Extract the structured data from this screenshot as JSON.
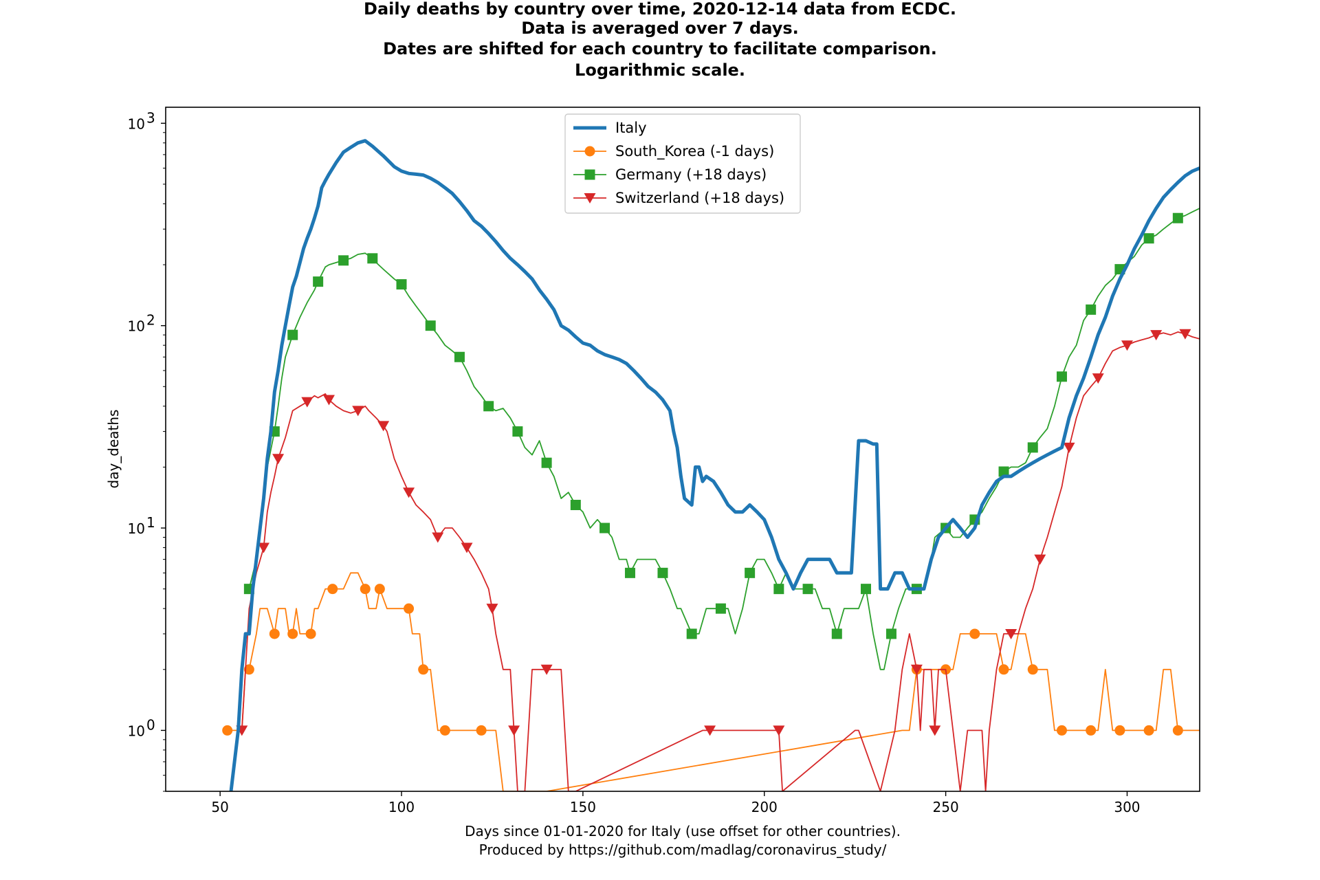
{
  "chart_data": {
    "type": "line",
    "title_lines": [
      "Daily deaths by country over time, 2020-12-14 data from ECDC.",
      "Data is averaged over 7 days.",
      "Dates are shifted for each country to facilitate comparison.",
      "Logarithmic scale."
    ],
    "xlabel_lines": [
      "Days since 01-01-2020 for Italy (use offset for other countries).",
      "Produced by https://github.com/madlag/coronavirus_study/"
    ],
    "ylabel": "day_deaths",
    "xlim": [
      35,
      320
    ],
    "ylim": [
      0.5,
      1200
    ],
    "yscale": "log",
    "x_ticks": [
      50,
      100,
      150,
      200,
      250,
      300
    ],
    "y_ticks": [
      {
        "value": 1,
        "base": "10",
        "exp": "0"
      },
      {
        "value": 10,
        "base": "10",
        "exp": "1"
      },
      {
        "value": 100,
        "base": "10",
        "exp": "2"
      },
      {
        "value": 1000,
        "base": "10",
        "exp": "3"
      }
    ],
    "legend_position": "top-center",
    "series": [
      {
        "name": "Italy",
        "color": "#1f77b4",
        "marker": "none",
        "x": [
          53,
          55,
          56,
          57,
          58,
          59,
          60,
          62,
          63,
          64,
          65,
          66,
          67,
          68,
          69,
          70,
          71,
          72,
          73,
          74,
          75,
          76,
          77,
          78,
          79,
          80,
          82,
          84,
          86,
          88,
          90,
          92,
          95,
          98,
          100,
          102,
          104,
          106,
          108,
          110,
          112,
          114,
          116,
          118,
          120,
          122,
          124,
          126,
          128,
          130,
          132,
          134,
          136,
          138,
          140,
          142,
          144,
          146,
          148,
          150,
          152,
          154,
          156,
          158,
          160,
          162,
          164,
          166,
          168,
          170,
          172,
          174,
          175,
          176,
          177,
          178,
          180,
          181,
          182,
          183,
          184,
          186,
          188,
          190,
          192,
          194,
          196,
          198,
          200,
          202,
          204,
          206,
          208,
          210,
          212,
          214,
          216,
          218,
          220,
          222,
          224,
          226,
          228,
          230,
          231,
          232,
          234,
          236,
          238,
          240,
          242,
          244,
          246,
          248,
          250,
          252,
          254,
          256,
          258,
          260,
          262,
          264,
          266,
          268,
          270,
          272,
          274,
          276,
          278,
          280,
          282,
          284,
          286,
          288,
          290,
          292,
          294,
          296,
          298,
          300,
          302,
          304,
          306,
          308,
          310,
          312,
          314,
          316,
          318,
          320
        ],
        "y": [
          0.5,
          1,
          2,
          3,
          3,
          5,
          7,
          14,
          22,
          30,
          47,
          60,
          80,
          100,
          125,
          155,
          175,
          205,
          240,
          270,
          300,
          340,
          390,
          480,
          520,
          560,
          640,
          720,
          760,
          800,
          820,
          770,
          690,
          610,
          580,
          565,
          560,
          555,
          535,
          510,
          480,
          450,
          410,
          370,
          330,
          310,
          285,
          260,
          235,
          215,
          200,
          185,
          170,
          150,
          135,
          120,
          100,
          95,
          88,
          82,
          80,
          75,
          72,
          70,
          68,
          65,
          60,
          55,
          50,
          47,
          43,
          38,
          30,
          25,
          18,
          14,
          13,
          20,
          20,
          17,
          18,
          17,
          15,
          13,
          12,
          12,
          13,
          12,
          11,
          9,
          7,
          6,
          5,
          6,
          7,
          7,
          7,
          7,
          6,
          6,
          6,
          27,
          27,
          26,
          26,
          5,
          5,
          6,
          6,
          5,
          5,
          5,
          7,
          9,
          10,
          11,
          10,
          9,
          10,
          13,
          15,
          17,
          18,
          18,
          19,
          20,
          21,
          22,
          23,
          24,
          25,
          35,
          45,
          55,
          70,
          90,
          110,
          140,
          170,
          200,
          240,
          280,
          330,
          380,
          430,
          470,
          510,
          550,
          580,
          600
        ]
      },
      {
        "name": "South_Korea (-1 days)",
        "color": "#ff7f0e",
        "marker": "circle",
        "x": [
          52,
          54,
          56,
          57,
          58,
          60,
          61,
          63,
          65,
          66,
          68,
          69,
          70,
          71,
          72,
          74,
          75,
          76,
          77,
          79,
          81,
          84,
          86,
          88,
          90,
          91,
          92,
          93,
          94,
          96,
          98,
          100,
          102,
          103,
          104,
          105,
          106,
          108,
          110,
          111,
          112,
          115,
          118,
          120,
          122,
          124,
          126,
          128,
          130,
          132,
          134,
          136,
          138,
          140,
          238,
          240,
          242,
          244,
          246,
          248,
          250,
          252,
          254,
          256,
          258,
          260,
          262,
          264,
          266,
          268,
          270,
          272,
          274,
          276,
          278,
          280,
          282,
          284,
          286,
          288,
          290,
          292,
          294,
          296,
          298,
          300,
          302,
          304,
          306,
          308,
          310,
          312,
          314,
          316,
          318,
          320
        ],
        "y": [
          1,
          1,
          1,
          2,
          2,
          3,
          4,
          4,
          3,
          4,
          4,
          3,
          3,
          4,
          3,
          3,
          3,
          4,
          4,
          5,
          5,
          5,
          6,
          6,
          5,
          4,
          4,
          4,
          5,
          4,
          4,
          4,
          4,
          3,
          3,
          3,
          2,
          2,
          1,
          1,
          1,
          1,
          1,
          1,
          1,
          1,
          1,
          0.5,
          0.5,
          0.5,
          0.5,
          0.5,
          0.5,
          0.5,
          1,
          1,
          2,
          2,
          2,
          2,
          2,
          2,
          3,
          3,
          3,
          3,
          3,
          3,
          2,
          2,
          3,
          3,
          2,
          2,
          2,
          1,
          1,
          1,
          1,
          1,
          1,
          1,
          2,
          1,
          1,
          1,
          1,
          1,
          1,
          1,
          2,
          2,
          1,
          1,
          1,
          1
        ]
      },
      {
        "name": "Germany (+18 days)",
        "color": "#2ca02c",
        "marker": "square",
        "x": [
          58,
          60,
          62,
          63,
          65,
          66,
          67,
          68,
          70,
          72,
          74,
          76,
          77,
          79,
          80,
          82,
          84,
          86,
          88,
          90,
          92,
          93,
          95,
          98,
          100,
          102,
          104,
          106,
          108,
          110,
          112,
          114,
          116,
          118,
          120,
          122,
          124,
          126,
          128,
          130,
          132,
          134,
          136,
          138,
          140,
          142,
          144,
          146,
          148,
          150,
          152,
          154,
          156,
          158,
          160,
          162,
          163,
          165,
          167,
          170,
          172,
          174,
          176,
          177,
          180,
          182,
          184,
          186,
          188,
          190,
          192,
          194,
          196,
          198,
          200,
          202,
          204,
          206,
          208,
          210,
          212,
          214,
          216,
          218,
          220,
          222,
          224,
          226,
          228,
          230,
          232,
          233,
          235,
          237,
          239,
          240,
          242,
          244,
          246,
          247,
          250,
          252,
          254,
          256,
          258,
          260,
          262,
          264,
          266,
          268,
          270,
          272,
          274,
          276,
          278,
          280,
          282,
          284,
          286,
          288,
          290,
          292,
          294,
          296,
          298,
          300,
          302,
          304,
          306,
          308,
          310,
          312,
          314,
          316,
          318,
          320
        ],
        "y": [
          5,
          7,
          13,
          20,
          30,
          40,
          55,
          70,
          90,
          110,
          130,
          150,
          165,
          195,
          200,
          205,
          210,
          215,
          225,
          228,
          215,
          205,
          190,
          170,
          160,
          140,
          125,
          112,
          100,
          90,
          80,
          75,
          70,
          60,
          50,
          45,
          40,
          38,
          39,
          35,
          30,
          25,
          23,
          27,
          21,
          18,
          14,
          15,
          13,
          12,
          10,
          11,
          10,
          9,
          7,
          7,
          6,
          7,
          7,
          7,
          6,
          5,
          4,
          4,
          3,
          3,
          4,
          4,
          4,
          4,
          3,
          4,
          6,
          7,
          7,
          6,
          5,
          6,
          5,
          5,
          5,
          5,
          4,
          4,
          3,
          4,
          4,
          4,
          5,
          3,
          2,
          2,
          3,
          4,
          5,
          5,
          5,
          5,
          7,
          9,
          10,
          9,
          9,
          10,
          11,
          12,
          14,
          16,
          19,
          20,
          20,
          21,
          25,
          28,
          31,
          40,
          56,
          70,
          80,
          106,
          120,
          140,
          158,
          170,
          190,
          205,
          220,
          250,
          270,
          280,
          300,
          320,
          340,
          350,
          365,
          380
        ]
      },
      {
        "name": "Switzerland (+18 days)",
        "color": "#d62728",
        "marker": "triangle-down",
        "x": [
          56,
          57,
          58,
          60,
          62,
          63,
          64,
          65,
          66,
          68,
          70,
          72,
          74,
          76,
          77,
          79,
          80,
          82,
          84,
          86,
          88,
          90,
          91,
          93,
          95,
          96,
          98,
          100,
          102,
          104,
          106,
          108,
          110,
          112,
          114,
          116,
          118,
          120,
          122,
          124,
          125,
          126,
          128,
          130,
          131,
          132,
          134,
          136,
          140,
          141,
          142,
          144,
          146,
          148,
          183,
          184,
          185,
          190,
          191,
          198,
          204,
          205,
          225,
          226,
          232,
          236,
          238,
          240,
          242,
          243,
          244,
          246,
          247,
          248,
          250,
          252,
          254,
          256,
          258,
          260,
          261,
          262,
          264,
          266,
          268,
          270,
          272,
          274,
          276,
          278,
          280,
          282,
          284,
          286,
          288,
          290,
          292,
          294,
          296,
          298,
          300,
          302,
          304,
          306,
          308,
          310,
          312,
          314,
          316,
          318,
          320
        ],
        "y": [
          1,
          2,
          4,
          6,
          8,
          12,
          15,
          18,
          22,
          28,
          38,
          40,
          42,
          45,
          44,
          46,
          43,
          40,
          38,
          37,
          38,
          40,
          38,
          35,
          32,
          30,
          22,
          18,
          15,
          13,
          12,
          11,
          9,
          10,
          10,
          9,
          8,
          7,
          6,
          5,
          4,
          3,
          2,
          2,
          1,
          0.5,
          0.5,
          2,
          2,
          2,
          2,
          2,
          0.5,
          0.5,
          1,
          1,
          1,
          1,
          1,
          1,
          1,
          0.5,
          1,
          1,
          0.5,
          1,
          2,
          3,
          2,
          1,
          2,
          2,
          1,
          2,
          2,
          1,
          0.5,
          1,
          1,
          1,
          0.5,
          1,
          2,
          3,
          3,
          3,
          4,
          5,
          7,
          9,
          12,
          16,
          25,
          35,
          45,
          50,
          55,
          65,
          75,
          78,
          80,
          83,
          85,
          87,
          90,
          92,
          90,
          93,
          91,
          88,
          86
        ]
      }
    ]
  }
}
